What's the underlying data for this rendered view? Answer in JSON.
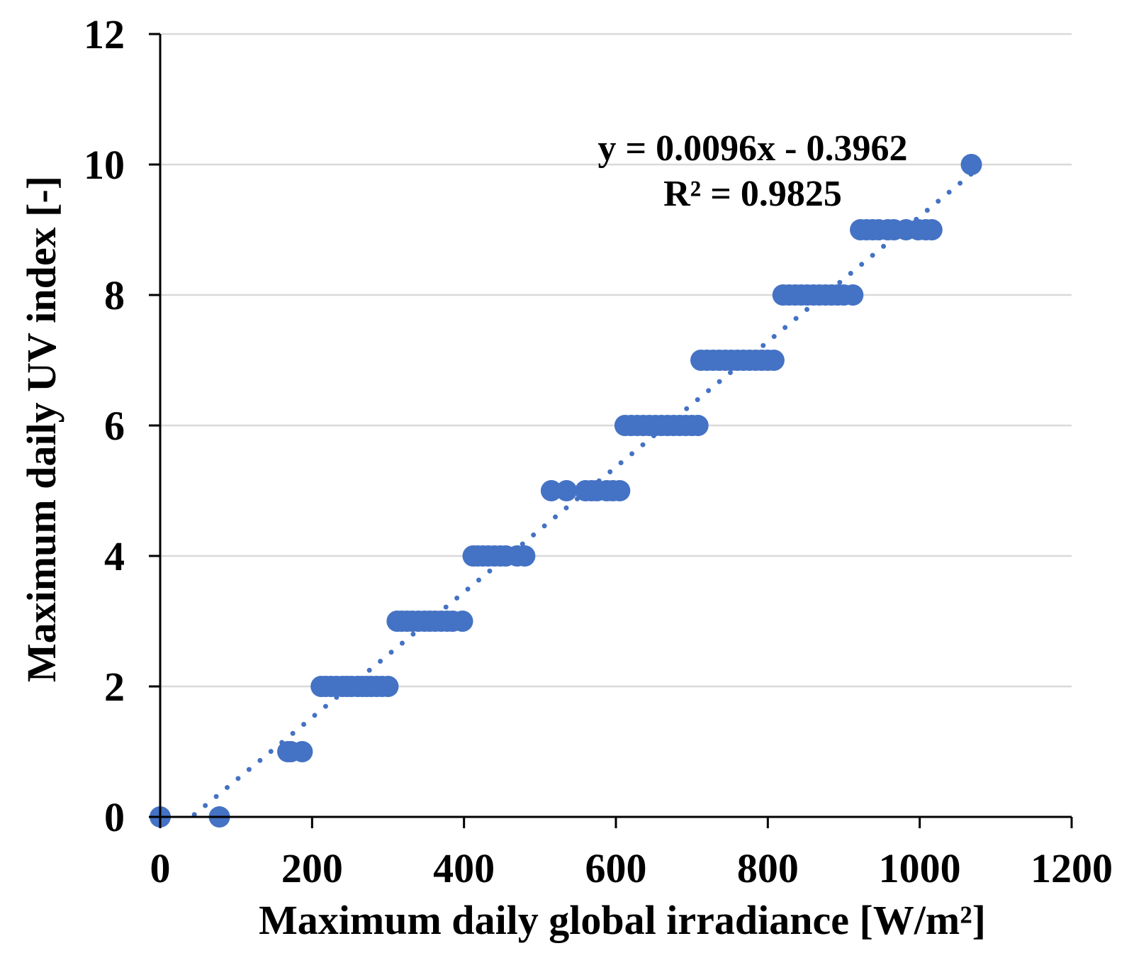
{
  "chart_data": {
    "type": "scatter",
    "xlabel": "Maximum daily global irradiance [W/m²]",
    "ylabel": "Maximum daily UV index [-]",
    "xlim": [
      0,
      1200
    ],
    "ylim": [
      0,
      12
    ],
    "x_ticks": [
      "0",
      "200",
      "400",
      "600",
      "800",
      "1000",
      "1200"
    ],
    "y_ticks": [
      "0",
      "2",
      "4",
      "6",
      "8",
      "10",
      "12"
    ],
    "grid": "horizontal",
    "colors": {
      "points": "#4472C4",
      "trendline": "#4472C4",
      "grid": "#d9d9d9",
      "axis": "#000000"
    },
    "trendline": {
      "style": "dotted",
      "slope": 0.0096,
      "intercept": -0.3962,
      "x_range": [
        45,
        1070
      ]
    },
    "annotations": {
      "equation": "y = 0.0096x - 0.3962",
      "r_squared": "R² = 0.9825"
    },
    "points": [
      {
        "x": 0,
        "y": 0
      },
      {
        "x": 78,
        "y": 0
      },
      {
        "x": 168,
        "y": 1
      },
      {
        "x": 172,
        "y": 1
      },
      {
        "x": 187,
        "y": 1
      },
      {
        "x": 212,
        "y": 2
      },
      {
        "x": 218,
        "y": 2
      },
      {
        "x": 225,
        "y": 2
      },
      {
        "x": 232,
        "y": 2
      },
      {
        "x": 240,
        "y": 2
      },
      {
        "x": 246,
        "y": 2
      },
      {
        "x": 252,
        "y": 2
      },
      {
        "x": 260,
        "y": 2
      },
      {
        "x": 266,
        "y": 2
      },
      {
        "x": 272,
        "y": 2
      },
      {
        "x": 278,
        "y": 2
      },
      {
        "x": 285,
        "y": 2
      },
      {
        "x": 292,
        "y": 2
      },
      {
        "x": 300,
        "y": 2
      },
      {
        "x": 312,
        "y": 3
      },
      {
        "x": 318,
        "y": 3
      },
      {
        "x": 325,
        "y": 3
      },
      {
        "x": 332,
        "y": 3
      },
      {
        "x": 340,
        "y": 3
      },
      {
        "x": 348,
        "y": 3
      },
      {
        "x": 355,
        "y": 3
      },
      {
        "x": 362,
        "y": 3
      },
      {
        "x": 370,
        "y": 3
      },
      {
        "x": 378,
        "y": 3
      },
      {
        "x": 385,
        "y": 3
      },
      {
        "x": 398,
        "y": 3
      },
      {
        "x": 412,
        "y": 4
      },
      {
        "x": 418,
        "y": 4
      },
      {
        "x": 425,
        "y": 4
      },
      {
        "x": 432,
        "y": 4
      },
      {
        "x": 440,
        "y": 4
      },
      {
        "x": 448,
        "y": 4
      },
      {
        "x": 455,
        "y": 4
      },
      {
        "x": 470,
        "y": 4
      },
      {
        "x": 480,
        "y": 4
      },
      {
        "x": 515,
        "y": 5
      },
      {
        "x": 535,
        "y": 5
      },
      {
        "x": 560,
        "y": 5
      },
      {
        "x": 568,
        "y": 5
      },
      {
        "x": 575,
        "y": 5
      },
      {
        "x": 588,
        "y": 5
      },
      {
        "x": 596,
        "y": 5
      },
      {
        "x": 605,
        "y": 5
      },
      {
        "x": 612,
        "y": 6
      },
      {
        "x": 620,
        "y": 6
      },
      {
        "x": 628,
        "y": 6
      },
      {
        "x": 636,
        "y": 6
      },
      {
        "x": 644,
        "y": 6
      },
      {
        "x": 652,
        "y": 6
      },
      {
        "x": 660,
        "y": 6
      },
      {
        "x": 668,
        "y": 6
      },
      {
        "x": 676,
        "y": 6
      },
      {
        "x": 684,
        "y": 6
      },
      {
        "x": 692,
        "y": 6
      },
      {
        "x": 700,
        "y": 6
      },
      {
        "x": 708,
        "y": 6
      },
      {
        "x": 712,
        "y": 7
      },
      {
        "x": 720,
        "y": 7
      },
      {
        "x": 728,
        "y": 7
      },
      {
        "x": 736,
        "y": 7
      },
      {
        "x": 744,
        "y": 7
      },
      {
        "x": 752,
        "y": 7
      },
      {
        "x": 760,
        "y": 7
      },
      {
        "x": 768,
        "y": 7
      },
      {
        "x": 776,
        "y": 7
      },
      {
        "x": 784,
        "y": 7
      },
      {
        "x": 792,
        "y": 7
      },
      {
        "x": 800,
        "y": 7
      },
      {
        "x": 808,
        "y": 7
      },
      {
        "x": 820,
        "y": 8
      },
      {
        "x": 828,
        "y": 8
      },
      {
        "x": 836,
        "y": 8
      },
      {
        "x": 844,
        "y": 8
      },
      {
        "x": 852,
        "y": 8
      },
      {
        "x": 860,
        "y": 8
      },
      {
        "x": 868,
        "y": 8
      },
      {
        "x": 876,
        "y": 8
      },
      {
        "x": 884,
        "y": 8
      },
      {
        "x": 892,
        "y": 8
      },
      {
        "x": 900,
        "y": 8
      },
      {
        "x": 912,
        "y": 8
      },
      {
        "x": 922,
        "y": 9
      },
      {
        "x": 930,
        "y": 9
      },
      {
        "x": 938,
        "y": 9
      },
      {
        "x": 946,
        "y": 9
      },
      {
        "x": 958,
        "y": 9
      },
      {
        "x": 966,
        "y": 9
      },
      {
        "x": 982,
        "y": 9
      },
      {
        "x": 998,
        "y": 9
      },
      {
        "x": 1008,
        "y": 9
      },
      {
        "x": 1016,
        "y": 9
      },
      {
        "x": 1068,
        "y": 10
      }
    ]
  }
}
